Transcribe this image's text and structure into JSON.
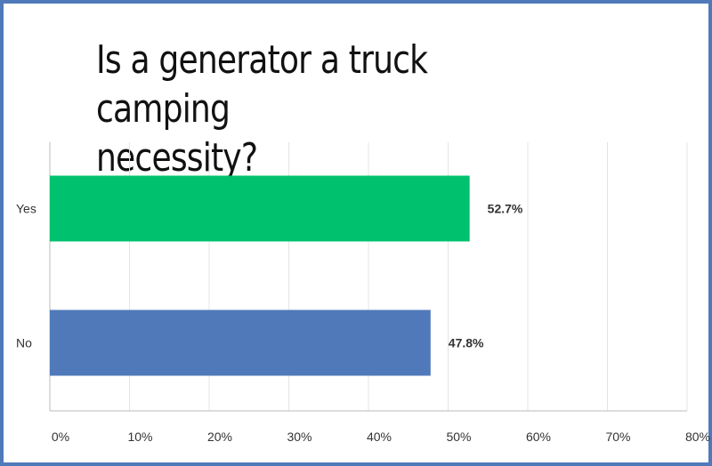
{
  "page": {
    "title": "Is a generator a truck camping\nnecessity?"
  },
  "colors": {
    "frame": "#4f79b9",
    "grid": "#e4e4e4",
    "axis": "#bbbbbb",
    "text": "#333333"
  },
  "chart_data": {
    "type": "bar",
    "orientation": "horizontal",
    "title": "Is a generator a truck camping necessity?",
    "xlabel": "",
    "ylabel": "",
    "xlim": [
      0,
      80
    ],
    "x_ticks": [
      "0%",
      "10%",
      "20%",
      "30%",
      "40%",
      "50%",
      "60%",
      "70%",
      "80%"
    ],
    "grid": true,
    "categories": [
      "Yes",
      "No"
    ],
    "values": [
      52.7,
      47.8
    ],
    "value_labels": [
      "52.7%",
      "47.8%"
    ],
    "bar_colors": [
      "#00c16e",
      "#4f79b9"
    ]
  }
}
